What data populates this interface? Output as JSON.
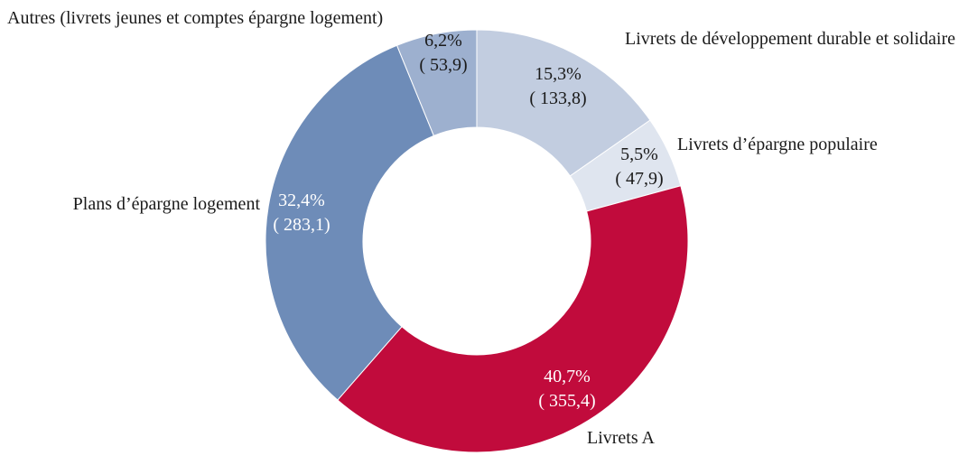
{
  "chart_data": {
    "type": "pie",
    "style": "donut",
    "slices": [
      {
        "name": "Livrets de développement durable et solidaire",
        "percent_label": "15,3%",
        "value_label": "( 133,8)",
        "value": 133.8,
        "color": "#c2cde0",
        "text_color": "#1a1a1a"
      },
      {
        "name": "Livrets d’épargne populaire",
        "percent_label": "5,5%",
        "value_label": "( 47,9)",
        "value": 47.9,
        "color": "#dfe5ef",
        "text_color": "#1a1a1a"
      },
      {
        "name": "Livrets A",
        "percent_label": "40,7%",
        "value_label": "( 355,4)",
        "value": 355.4,
        "color": "#c10b3c",
        "text_color": "#ffffff"
      },
      {
        "name": "Plans d’épargne logement",
        "percent_label": "32,4%",
        "value_label": "( 283,1)",
        "value": 283.1,
        "color": "#6e8cb8",
        "text_color": "#ffffff"
      },
      {
        "name": "Autres (livrets jeunes et comptes épargne logement)",
        "percent_label": "6,2%",
        "value_label": "( 53,9)",
        "value": 53.9,
        "color": "#9db0cf",
        "text_color": "#1a1a1a"
      }
    ]
  }
}
